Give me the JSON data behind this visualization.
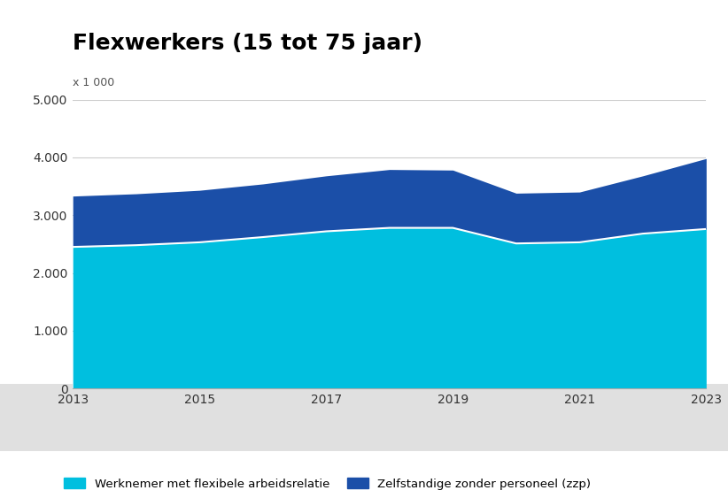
{
  "title": "Flexwerkers (15 tot 75 jaar)",
  "ylabel_unit": "x 1 000",
  "years": [
    2013,
    2014,
    2015,
    2016,
    2017,
    2018,
    2019,
    2020,
    2021,
    2022,
    2023
  ],
  "werknemer": [
    2450,
    2480,
    2530,
    2620,
    2720,
    2780,
    2780,
    2510,
    2530,
    2680,
    2760
  ],
  "zzp": [
    880,
    890,
    900,
    920,
    960,
    1010,
    1000,
    870,
    870,
    1000,
    1220
  ],
  "color_werknemer": "#00BFDF",
  "color_zzp": "#1B4FA8",
  "color_gray_band": "#E0E0E0",
  "color_background_fig": "#FFFFFF",
  "color_grid": "#CCCCCC",
  "yticks": [
    0,
    1000,
    2000,
    3000,
    4000,
    5000
  ],
  "ylim": [
    0,
    5000
  ],
  "xlim": [
    2013,
    2023
  ],
  "xticks": [
    2013,
    2015,
    2017,
    2019,
    2021,
    2023
  ],
  "legend_werknemer": "Werknemer met flexibele arbeidsrelatie",
  "legend_zzp": "Zelfstandige zonder personeel (zzp)",
  "title_fontsize": 18,
  "tick_fontsize": 10,
  "unit_fontsize": 9
}
